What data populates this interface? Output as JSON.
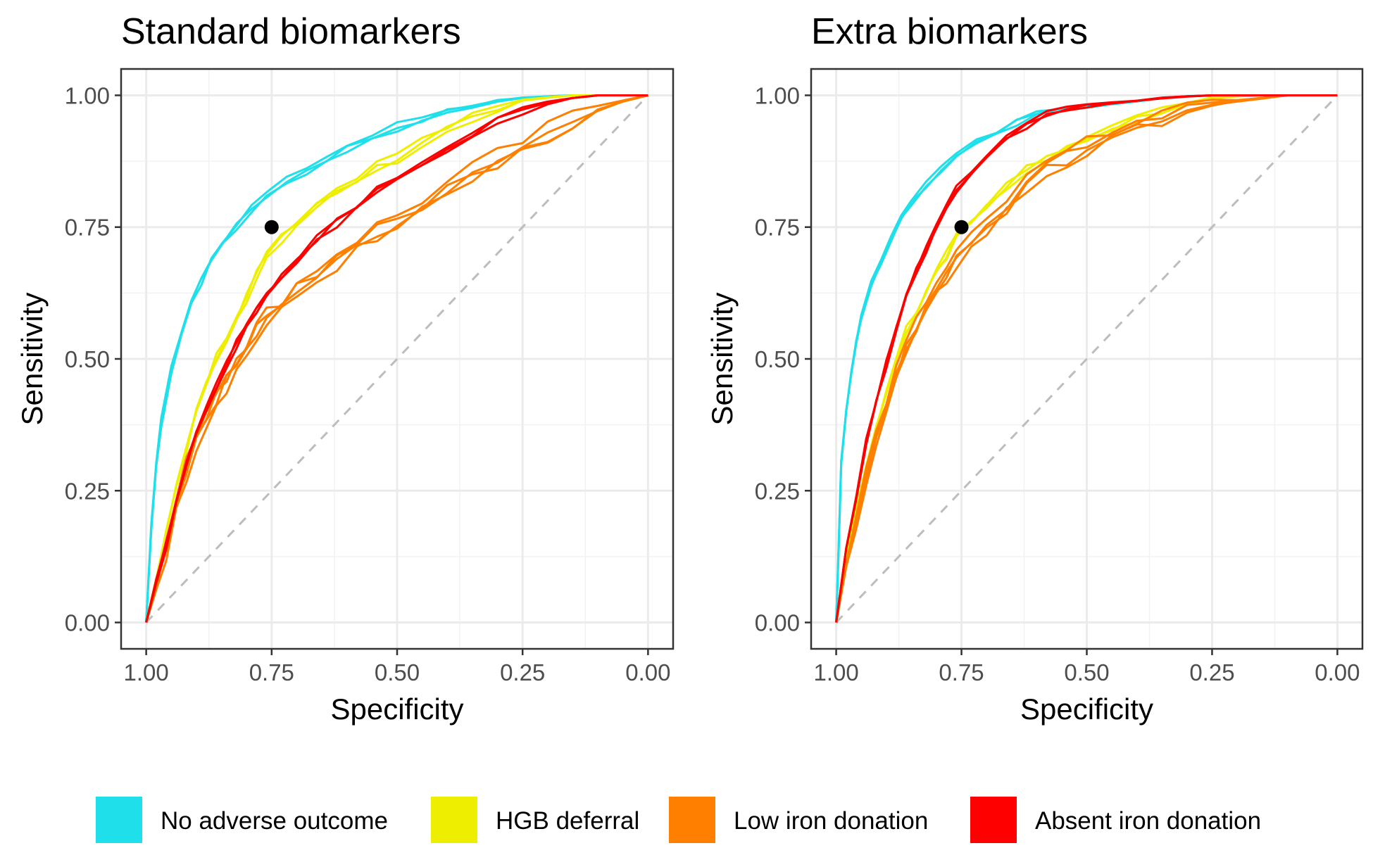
{
  "chart_data": [
    {
      "type": "line",
      "title": "Standard biomarkers",
      "xlabel": "Specificity",
      "ylabel": "Sensitivity",
      "xlim": [
        1,
        0
      ],
      "ylim": [
        0,
        1
      ],
      "x_reversed": true,
      "xticks": [
        "1.00",
        "0.75",
        "0.50",
        "0.25",
        "0.00"
      ],
      "yticks": [
        "0.00",
        "0.25",
        "0.50",
        "0.75",
        "1.00"
      ],
      "grid": true,
      "reference_point": {
        "specificity": 0.75,
        "sensitivity": 0.75
      },
      "reference_line": "diagonal",
      "series": [
        {
          "name": "No adverse outcome",
          "color": "#1fe0ea",
          "variants": 3,
          "jitter": 0.007,
          "x": [
            1.0,
            0.99,
            0.98,
            0.97,
            0.95,
            0.93,
            0.91,
            0.89,
            0.87,
            0.85,
            0.82,
            0.79,
            0.76,
            0.72,
            0.68,
            0.64,
            0.6,
            0.55,
            0.5,
            0.45,
            0.4,
            0.35,
            0.3,
            0.25,
            0.2,
            0.15,
            0.1,
            0.05,
            0.0
          ],
          "y": [
            0.0,
            0.18,
            0.3,
            0.38,
            0.48,
            0.55,
            0.61,
            0.65,
            0.69,
            0.72,
            0.75,
            0.785,
            0.81,
            0.835,
            0.86,
            0.88,
            0.9,
            0.92,
            0.94,
            0.955,
            0.97,
            0.98,
            0.99,
            0.995,
            0.998,
            1.0,
            1.0,
            1.0,
            1.0
          ]
        },
        {
          "name": "HGB deferral",
          "color": "#eeee00",
          "variants": 3,
          "jitter": 0.009,
          "x": [
            1.0,
            0.98,
            0.96,
            0.94,
            0.92,
            0.9,
            0.88,
            0.86,
            0.84,
            0.82,
            0.8,
            0.78,
            0.76,
            0.73,
            0.7,
            0.66,
            0.62,
            0.58,
            0.54,
            0.5,
            0.45,
            0.4,
            0.35,
            0.3,
            0.25,
            0.2,
            0.15,
            0.1,
            0.05,
            0.0
          ],
          "y": [
            0.0,
            0.08,
            0.17,
            0.26,
            0.33,
            0.4,
            0.45,
            0.5,
            0.54,
            0.58,
            0.62,
            0.66,
            0.7,
            0.73,
            0.76,
            0.79,
            0.82,
            0.845,
            0.865,
            0.885,
            0.91,
            0.935,
            0.955,
            0.975,
            0.99,
            0.996,
            1.0,
            1.0,
            1.0,
            1.0
          ]
        },
        {
          "name": "Low iron donation",
          "color": "#ff7f00",
          "variants": 4,
          "jitter": 0.014,
          "x": [
            1.0,
            0.98,
            0.96,
            0.94,
            0.92,
            0.9,
            0.88,
            0.86,
            0.84,
            0.82,
            0.8,
            0.78,
            0.76,
            0.73,
            0.7,
            0.66,
            0.62,
            0.58,
            0.54,
            0.5,
            0.45,
            0.4,
            0.35,
            0.3,
            0.25,
            0.2,
            0.15,
            0.1,
            0.05,
            0.0
          ],
          "y": [
            0.0,
            0.07,
            0.14,
            0.22,
            0.29,
            0.35,
            0.39,
            0.43,
            0.46,
            0.49,
            0.52,
            0.55,
            0.575,
            0.6,
            0.63,
            0.66,
            0.69,
            0.715,
            0.74,
            0.76,
            0.79,
            0.82,
            0.85,
            0.875,
            0.9,
            0.925,
            0.95,
            0.975,
            0.99,
            1.0
          ]
        },
        {
          "name": "Absent iron donation",
          "color": "#ff0000",
          "variants": 3,
          "jitter": 0.008,
          "x": [
            1.0,
            0.98,
            0.96,
            0.94,
            0.92,
            0.9,
            0.88,
            0.86,
            0.84,
            0.82,
            0.8,
            0.78,
            0.76,
            0.73,
            0.7,
            0.66,
            0.62,
            0.58,
            0.54,
            0.5,
            0.45,
            0.4,
            0.35,
            0.3,
            0.25,
            0.2,
            0.15,
            0.1,
            0.05,
            0.0
          ],
          "y": [
            0.0,
            0.08,
            0.15,
            0.23,
            0.3,
            0.36,
            0.41,
            0.45,
            0.49,
            0.53,
            0.56,
            0.59,
            0.62,
            0.655,
            0.69,
            0.73,
            0.76,
            0.79,
            0.82,
            0.845,
            0.875,
            0.9,
            0.925,
            0.95,
            0.97,
            0.985,
            0.995,
            1.0,
            1.0,
            1.0
          ]
        }
      ]
    },
    {
      "type": "line",
      "title": "Extra biomarkers",
      "xlabel": "Specificity",
      "ylabel": "Sensitivity",
      "xlim": [
        1,
        0
      ],
      "ylim": [
        0,
        1
      ],
      "x_reversed": true,
      "xticks": [
        "1.00",
        "0.75",
        "0.50",
        "0.25",
        "0.00"
      ],
      "yticks": [
        "0.00",
        "0.25",
        "0.50",
        "0.75",
        "1.00"
      ],
      "grid": true,
      "reference_point": {
        "specificity": 0.75,
        "sensitivity": 0.75
      },
      "reference_line": "diagonal",
      "series": [
        {
          "name": "No adverse outcome",
          "color": "#1fe0ea",
          "variants": 3,
          "jitter": 0.006,
          "x": [
            1.0,
            0.995,
            0.99,
            0.98,
            0.97,
            0.96,
            0.95,
            0.93,
            0.91,
            0.89,
            0.87,
            0.85,
            0.82,
            0.79,
            0.76,
            0.72,
            0.68,
            0.64,
            0.6,
            0.55,
            0.5,
            0.45,
            0.4,
            0.35,
            0.3,
            0.25,
            0.2,
            0.1,
            0.0
          ],
          "y": [
            0.0,
            0.15,
            0.3,
            0.4,
            0.47,
            0.53,
            0.58,
            0.64,
            0.69,
            0.73,
            0.77,
            0.8,
            0.83,
            0.86,
            0.89,
            0.91,
            0.93,
            0.95,
            0.965,
            0.975,
            0.98,
            0.985,
            0.99,
            0.995,
            0.998,
            1.0,
            1.0,
            1.0,
            1.0
          ]
        },
        {
          "name": "HGB deferral",
          "color": "#eeee00",
          "variants": 3,
          "jitter": 0.008,
          "x": [
            1.0,
            0.98,
            0.96,
            0.94,
            0.92,
            0.9,
            0.88,
            0.86,
            0.84,
            0.82,
            0.8,
            0.78,
            0.76,
            0.73,
            0.7,
            0.66,
            0.62,
            0.58,
            0.54,
            0.5,
            0.45,
            0.4,
            0.35,
            0.3,
            0.25,
            0.2,
            0.15,
            0.1,
            0.05,
            0.0
          ],
          "y": [
            0.0,
            0.12,
            0.21,
            0.3,
            0.37,
            0.44,
            0.5,
            0.55,
            0.59,
            0.63,
            0.67,
            0.7,
            0.73,
            0.76,
            0.79,
            0.83,
            0.86,
            0.88,
            0.9,
            0.915,
            0.935,
            0.955,
            0.97,
            0.985,
            0.995,
            0.998,
            1.0,
            1.0,
            1.0,
            1.0
          ]
        },
        {
          "name": "Low iron donation",
          "color": "#ff7f00",
          "variants": 4,
          "jitter": 0.012,
          "x": [
            1.0,
            0.98,
            0.96,
            0.94,
            0.92,
            0.9,
            0.88,
            0.86,
            0.84,
            0.82,
            0.8,
            0.78,
            0.76,
            0.73,
            0.7,
            0.66,
            0.62,
            0.58,
            0.54,
            0.5,
            0.45,
            0.4,
            0.35,
            0.3,
            0.25,
            0.2,
            0.15,
            0.1,
            0.05,
            0.0
          ],
          "y": [
            0.0,
            0.11,
            0.2,
            0.28,
            0.35,
            0.41,
            0.47,
            0.52,
            0.56,
            0.6,
            0.63,
            0.66,
            0.69,
            0.72,
            0.75,
            0.79,
            0.83,
            0.86,
            0.88,
            0.9,
            0.925,
            0.945,
            0.96,
            0.975,
            0.985,
            0.99,
            0.995,
            1.0,
            1.0,
            1.0
          ]
        },
        {
          "name": "Absent iron donation",
          "color": "#ff0000",
          "variants": 3,
          "jitter": 0.006,
          "x": [
            1.0,
            0.98,
            0.96,
            0.94,
            0.92,
            0.9,
            0.88,
            0.86,
            0.84,
            0.82,
            0.8,
            0.78,
            0.76,
            0.73,
            0.7,
            0.66,
            0.62,
            0.58,
            0.54,
            0.5,
            0.45,
            0.4,
            0.35,
            0.3,
            0.25,
            0.2,
            0.15,
            0.1,
            0.05,
            0.0
          ],
          "y": [
            0.0,
            0.14,
            0.24,
            0.34,
            0.42,
            0.49,
            0.56,
            0.62,
            0.67,
            0.71,
            0.75,
            0.79,
            0.82,
            0.855,
            0.885,
            0.92,
            0.945,
            0.965,
            0.975,
            0.98,
            0.985,
            0.99,
            0.995,
            0.998,
            1.0,
            1.0,
            1.0,
            1.0,
            1.0,
            1.0
          ]
        }
      ]
    }
  ],
  "legend": {
    "position": "bottom",
    "items": [
      {
        "label": "No adverse outcome",
        "color": "#1fe0ea"
      },
      {
        "label": "HGB deferral",
        "color": "#eeee00"
      },
      {
        "label": "Low iron donation",
        "color": "#ff7f00"
      },
      {
        "label": "Absent iron donation",
        "color": "#ff0000"
      }
    ]
  }
}
